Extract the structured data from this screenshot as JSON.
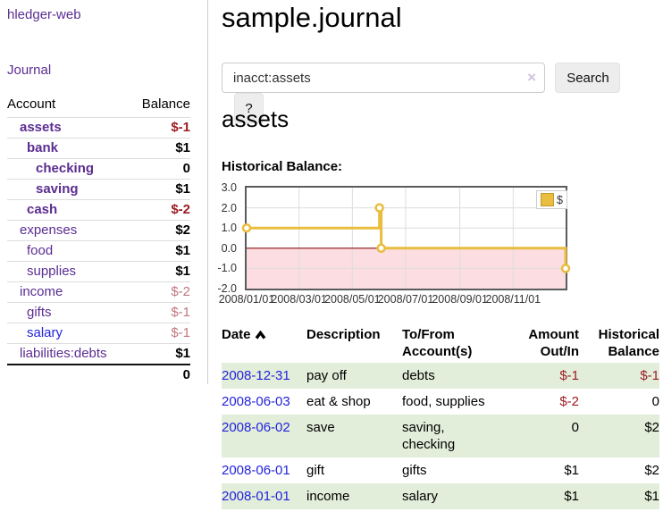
{
  "brand": "hledger-web",
  "nav": {
    "journal": "Journal"
  },
  "sidebar": {
    "header": {
      "account": "Account",
      "balance": "Balance"
    },
    "accounts": [
      {
        "label": "assets",
        "indent": 1,
        "bold": true,
        "balance": "$-1",
        "negative_style": "strong"
      },
      {
        "label": "bank",
        "indent": 2,
        "bold": true,
        "balance": "$1"
      },
      {
        "label": "checking",
        "indent": 3,
        "bold": true,
        "balance": "0"
      },
      {
        "label": "saving",
        "indent": 3,
        "bold": true,
        "balance": "$1"
      },
      {
        "label": "cash",
        "indent": 2,
        "bold": true,
        "balance": "$-2",
        "negative_style": "strong"
      },
      {
        "label": "expenses",
        "indent": 1,
        "bold": false,
        "balance": "$2"
      },
      {
        "label": "food",
        "indent": 2,
        "bold": false,
        "balance": "$1"
      },
      {
        "label": "supplies",
        "indent": 2,
        "bold": false,
        "balance": "$1"
      },
      {
        "label": "income",
        "indent": 1,
        "bold": false,
        "balance": "$-2",
        "negative_style": "soft"
      },
      {
        "label": "gifts",
        "indent": 2,
        "bold": false,
        "balance": "$-1",
        "negative_style": "soft"
      },
      {
        "label": "salary",
        "indent": 2,
        "bold": false,
        "balance": "$-1",
        "negative_style": "soft",
        "link_color": "blue"
      },
      {
        "label": "liabilities:debts",
        "indent": 1,
        "bold": false,
        "balance": "$1"
      }
    ],
    "total": "0"
  },
  "header": {
    "title": "sample.journal"
  },
  "search": {
    "value": "inacct:assets",
    "clear_icon": "×",
    "button": "Search",
    "help_button": "?"
  },
  "account_page": {
    "title": "assets",
    "chart_label": "Historical Balance:"
  },
  "chart_data": {
    "type": "line",
    "step": true,
    "title": "Historical Balance:",
    "series": [
      {
        "name": "$",
        "color": "#e9bd3d",
        "points": [
          [
            "2008-01-01",
            1
          ],
          [
            "2008-06-01",
            2
          ],
          [
            "2008-06-03",
            0
          ],
          [
            "2008-12-31",
            -1
          ]
        ]
      }
    ],
    "x_range": [
      "2008-01-01",
      "2008-12-31"
    ],
    "ylim": [
      -2,
      3
    ],
    "y_ticks": [
      "3.0",
      "2.0",
      "1.0",
      "0.0",
      "-1.0",
      "-2.0"
    ],
    "x_ticks": [
      "2008/01/01",
      "2008/03/01",
      "2008/05/01",
      "2008/07/01",
      "2008/09/01",
      "2008/11/01"
    ],
    "grid": true,
    "negative_region_color": "#fbdde2",
    "zero_line_color": "#8f1010",
    "legend": {
      "label": "$",
      "swatch_color": "#e9bd3d",
      "position": "top-right"
    }
  },
  "register": {
    "headers": [
      "Date",
      "Description",
      "To/From Account(s)",
      "Amount Out/In",
      "Historical Balance"
    ],
    "sort": {
      "column": "Date",
      "direction": "ascending"
    },
    "rows": [
      {
        "date": "2008-12-31",
        "description": "pay off",
        "accounts": "debts",
        "amount": "$-1",
        "balance": "$-1"
      },
      {
        "date": "2008-06-03",
        "description": "eat & shop",
        "accounts": "food, supplies",
        "amount": "$-2",
        "balance": "0"
      },
      {
        "date": "2008-06-02",
        "description": "save",
        "accounts": "saving,\nchecking",
        "amount": "0",
        "balance": "$2"
      },
      {
        "date": "2008-06-01",
        "description": "gift",
        "accounts": "gifts",
        "amount": "$1",
        "balance": "$2"
      },
      {
        "date": "2008-01-01",
        "description": "income",
        "accounts": "salary",
        "amount": "$1",
        "balance": "$1"
      }
    ]
  },
  "colors": {
    "link_purple": "#5b2d91",
    "link_blue": "#2323dd",
    "negative_strong": "#9b1d22",
    "negative_soft": "#c1767d",
    "row_stripe_green": "#e2edda",
    "chart_gold": "#e9bd3d",
    "chart_negative_pink": "#fbdde2",
    "zero_line_red": "#8f1010"
  }
}
